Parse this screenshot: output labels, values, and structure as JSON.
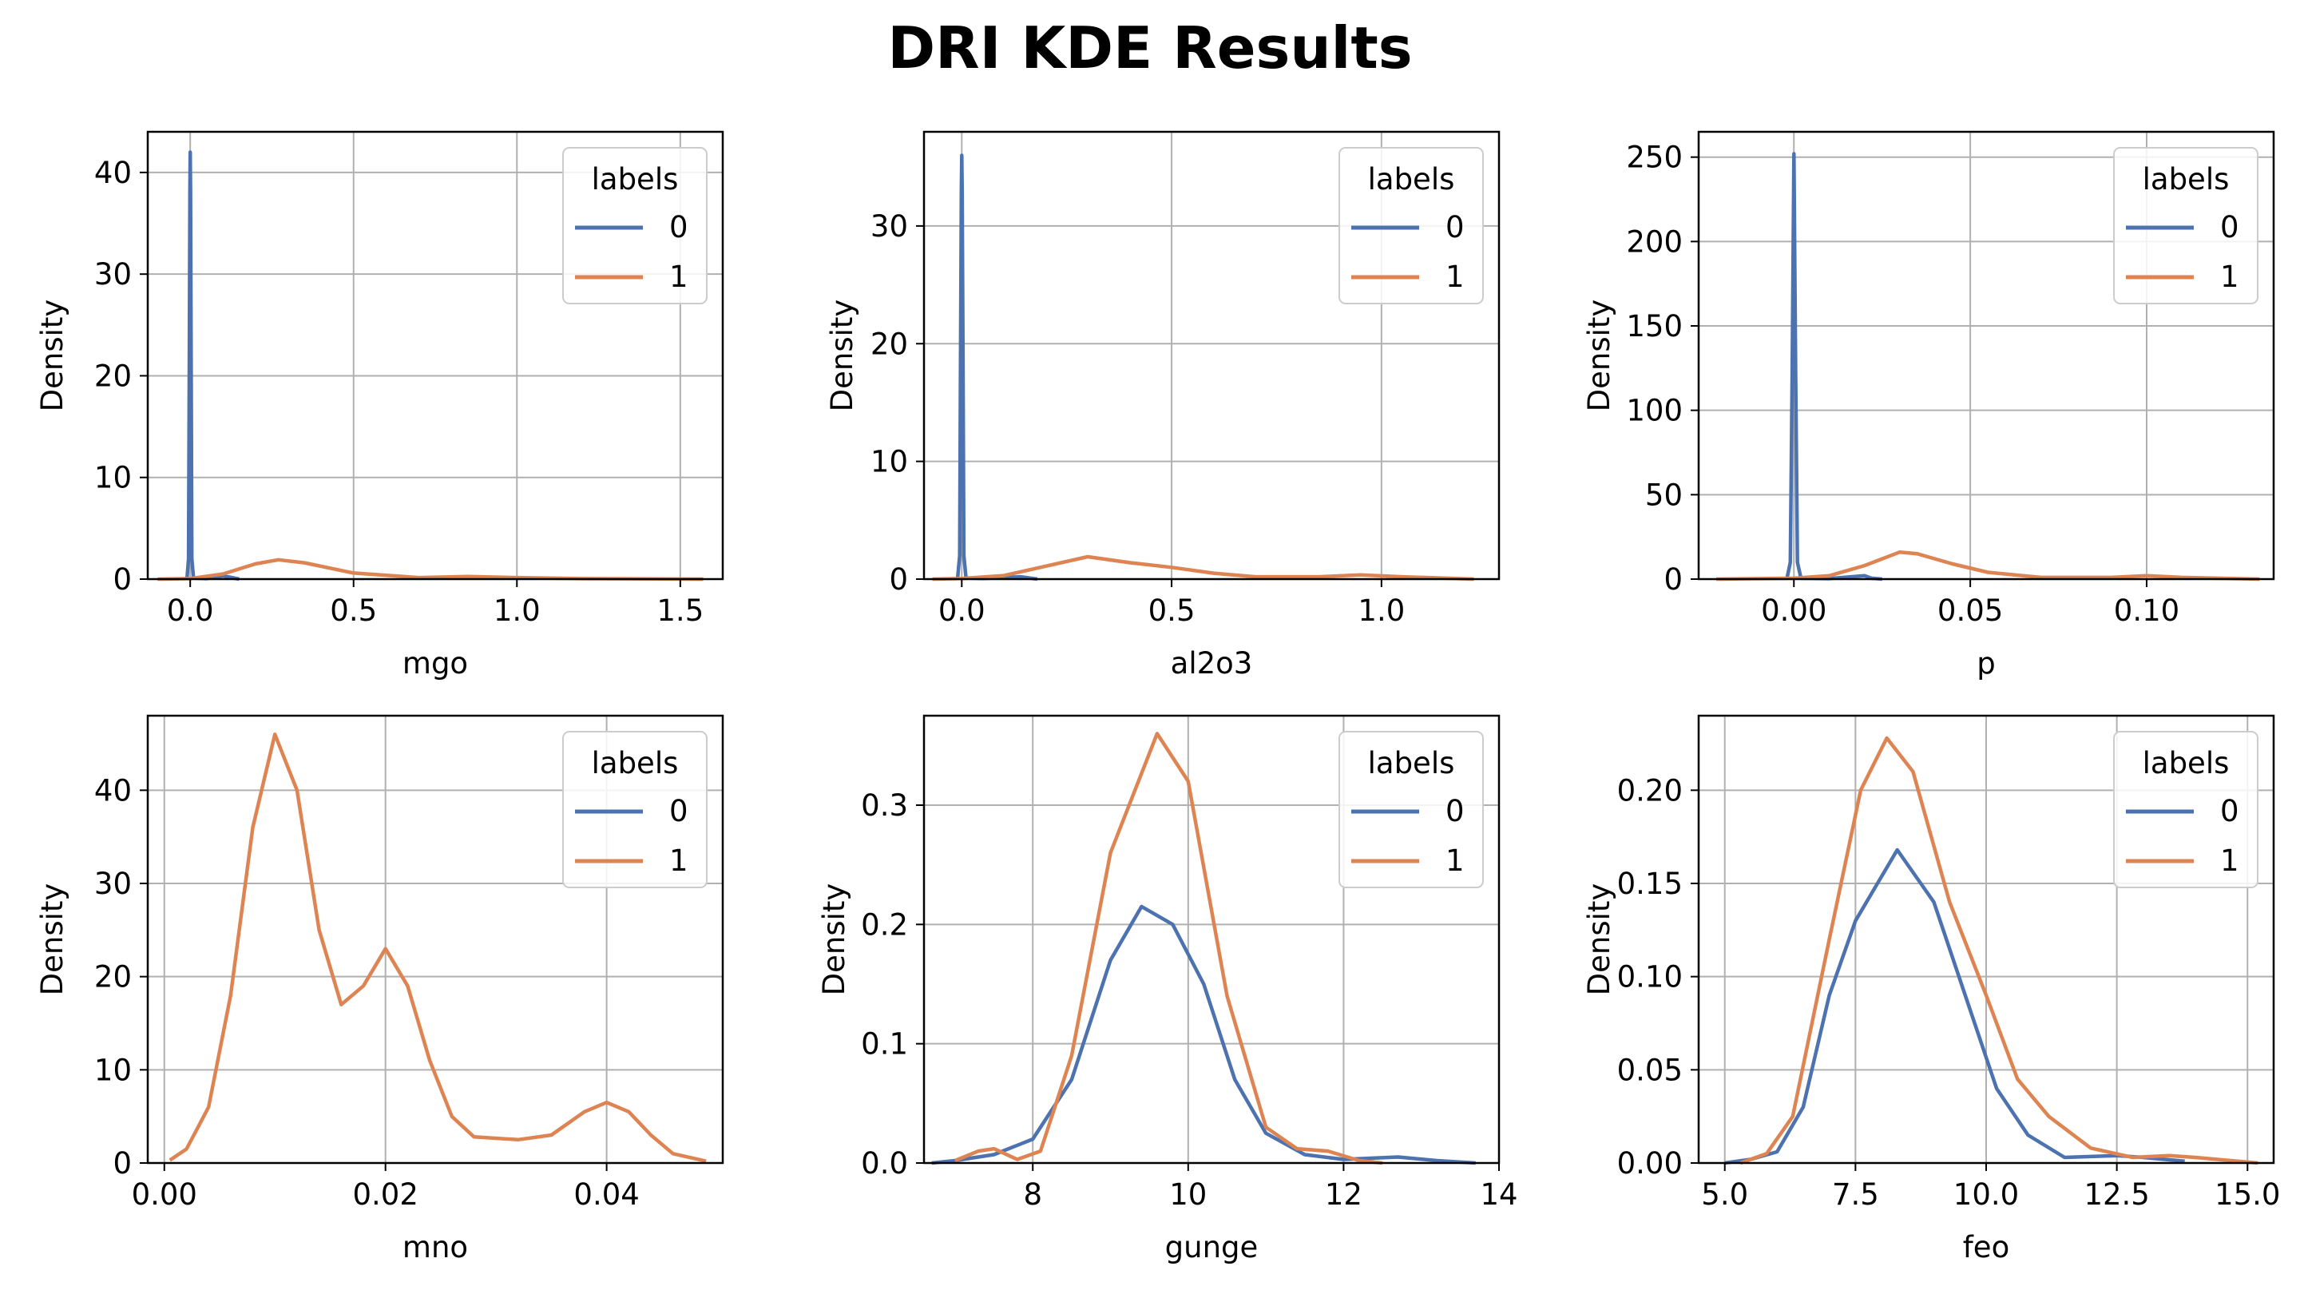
{
  "figure": {
    "title": "DRI KDE Results"
  },
  "colors": {
    "label_0": "#4c72b0",
    "label_1": "#dd8452",
    "grid": "#b0b0b0",
    "axes": "#000000"
  },
  "legend": {
    "title": "labels",
    "entries": [
      "0",
      "1"
    ],
    "placement": "upper right"
  },
  "chart_data": [
    {
      "type": "line",
      "xlabel": "mgo",
      "ylabel": "Density",
      "xlim": [
        -0.13,
        1.63
      ],
      "ylim": [
        0,
        44
      ],
      "xticks": [
        0.0,
        0.5,
        1.0,
        1.5
      ],
      "xtick_labels": [
        "0.0",
        "0.5",
        "1.0",
        "1.5"
      ],
      "yticks": [
        0,
        10,
        20,
        30,
        40
      ],
      "ytick_labels": [
        "0",
        "10",
        "20",
        "30",
        "40"
      ],
      "grid": true,
      "series": [
        {
          "name": "0",
          "points": [
            [
              -0.01,
              0
            ],
            [
              -0.005,
              2
            ],
            [
              -0.003,
              20
            ],
            [
              -0.001,
              38
            ],
            [
              0,
              42
            ],
            [
              0.001,
              38
            ],
            [
              0.003,
              20
            ],
            [
              0.005,
              2
            ],
            [
              0.01,
              0.1
            ],
            [
              0.05,
              0.05
            ],
            [
              0.1,
              0.3
            ],
            [
              0.12,
              0.2
            ],
            [
              0.15,
              0
            ]
          ]
        },
        {
          "name": "1",
          "points": [
            [
              -0.1,
              0
            ],
            [
              0,
              0.05
            ],
            [
              0.1,
              0.5
            ],
            [
              0.2,
              1.5
            ],
            [
              0.27,
              1.9
            ],
            [
              0.35,
              1.6
            ],
            [
              0.5,
              0.6
            ],
            [
              0.7,
              0.15
            ],
            [
              0.85,
              0.25
            ],
            [
              1.0,
              0.15
            ],
            [
              1.2,
              0.05
            ],
            [
              1.57,
              0
            ]
          ]
        }
      ]
    },
    {
      "type": "line",
      "xlabel": "al2o3",
      "ylabel": "Density",
      "xlim": [
        -0.09,
        1.28
      ],
      "ylim": [
        0,
        38
      ],
      "xticks": [
        0.0,
        0.5,
        1.0
      ],
      "xtick_labels": [
        "0.0",
        "0.5",
        "1.0"
      ],
      "yticks": [
        0,
        10,
        20,
        30
      ],
      "ytick_labels": [
        "0",
        "10",
        "20",
        "30"
      ],
      "grid": true,
      "series": [
        {
          "name": "0",
          "points": [
            [
              -0.01,
              0
            ],
            [
              -0.005,
              2
            ],
            [
              -0.003,
              18
            ],
            [
              -0.001,
              33
            ],
            [
              0,
              36
            ],
            [
              0.001,
              33
            ],
            [
              0.003,
              18
            ],
            [
              0.005,
              2
            ],
            [
              0.01,
              0.1
            ],
            [
              0.05,
              0.05
            ],
            [
              0.14,
              0.2
            ],
            [
              0.18,
              0
            ]
          ]
        },
        {
          "name": "1",
          "points": [
            [
              -0.07,
              0
            ],
            [
              0,
              0.05
            ],
            [
              0.1,
              0.3
            ],
            [
              0.2,
              1.1
            ],
            [
              0.3,
              1.9
            ],
            [
              0.4,
              1.4
            ],
            [
              0.5,
              1.0
            ],
            [
              0.6,
              0.5
            ],
            [
              0.7,
              0.2
            ],
            [
              0.85,
              0.2
            ],
            [
              0.95,
              0.35
            ],
            [
              1.05,
              0.2
            ],
            [
              1.22,
              0
            ]
          ]
        }
      ]
    },
    {
      "type": "line",
      "xlabel": "p",
      "ylabel": "Density",
      "xlim": [
        -0.027,
        0.136
      ],
      "ylim": [
        0,
        265
      ],
      "xticks": [
        0.0,
        0.05,
        0.1
      ],
      "xtick_labels": [
        "0.00",
        "0.05",
        "0.10"
      ],
      "yticks": [
        0,
        50,
        100,
        150,
        200,
        250
      ],
      "ytick_labels": [
        "0",
        "50",
        "100",
        "150",
        "200",
        "250"
      ],
      "grid": true,
      "series": [
        {
          "name": "0",
          "points": [
            [
              -0.002,
              0
            ],
            [
              -0.001,
              10
            ],
            [
              -0.0005,
              120
            ],
            [
              0,
              252
            ],
            [
              0.0005,
              120
            ],
            [
              0.001,
              10
            ],
            [
              0.002,
              0.5
            ],
            [
              0.01,
              0.3
            ],
            [
              0.02,
              2
            ],
            [
              0.022,
              0.5
            ],
            [
              0.025,
              0
            ]
          ]
        },
        {
          "name": "1",
          "points": [
            [
              -0.022,
              0
            ],
            [
              0,
              0.5
            ],
            [
              0.01,
              2
            ],
            [
              0.02,
              8
            ],
            [
              0.03,
              16
            ],
            [
              0.035,
              15
            ],
            [
              0.045,
              9
            ],
            [
              0.055,
              4
            ],
            [
              0.07,
              1
            ],
            [
              0.09,
              1
            ],
            [
              0.1,
              2
            ],
            [
              0.11,
              1
            ],
            [
              0.132,
              0
            ]
          ]
        }
      ]
    },
    {
      "type": "line",
      "xlabel": "mno",
      "ylabel": "Density",
      "xlim": [
        -0.0015,
        0.0505
      ],
      "ylim": [
        0,
        48
      ],
      "xticks": [
        0.0,
        0.02,
        0.04
      ],
      "xtick_labels": [
        "0.00",
        "0.02",
        "0.04"
      ],
      "yticks": [
        0,
        10,
        20,
        30,
        40
      ],
      "ytick_labels": [
        "0",
        "10",
        "20",
        "30",
        "40"
      ],
      "grid": true,
      "series": [
        {
          "name": "1",
          "points": [
            [
              0.0005,
              0.3
            ],
            [
              0.002,
              1.5
            ],
            [
              0.004,
              6
            ],
            [
              0.006,
              18
            ],
            [
              0.008,
              36
            ],
            [
              0.01,
              46
            ],
            [
              0.012,
              40
            ],
            [
              0.014,
              25
            ],
            [
              0.016,
              17
            ],
            [
              0.018,
              19
            ],
            [
              0.02,
              23
            ],
            [
              0.022,
              19
            ],
            [
              0.024,
              11
            ],
            [
              0.026,
              5
            ],
            [
              0.028,
              2.8
            ],
            [
              0.032,
              2.5
            ],
            [
              0.035,
              3
            ],
            [
              0.038,
              5.5
            ],
            [
              0.04,
              6.5
            ],
            [
              0.042,
              5.5
            ],
            [
              0.044,
              3
            ],
            [
              0.046,
              1
            ],
            [
              0.049,
              0.2
            ]
          ]
        }
      ]
    },
    {
      "type": "line",
      "xlabel": "gunge",
      "ylabel": "Density",
      "xlim": [
        6.6,
        14.0
      ],
      "ylim": [
        0,
        0.375
      ],
      "xticks": [
        8,
        10,
        12,
        14
      ],
      "xtick_labels": [
        "8",
        "10",
        "12",
        "14"
      ],
      "yticks": [
        0,
        0.1,
        0.2,
        0.3
      ],
      "ytick_labels": [
        "0.0",
        "0.1",
        "0.2",
        "0.3"
      ],
      "grid": true,
      "series": [
        {
          "name": "0",
          "points": [
            [
              6.7,
              0
            ],
            [
              7,
              0.002
            ],
            [
              7.5,
              0.007
            ],
            [
              8,
              0.02
            ],
            [
              8.5,
              0.07
            ],
            [
              9,
              0.17
            ],
            [
              9.4,
              0.215
            ],
            [
              9.8,
              0.2
            ],
            [
              10.2,
              0.15
            ],
            [
              10.6,
              0.07
            ],
            [
              11,
              0.025
            ],
            [
              11.5,
              0.007
            ],
            [
              12,
              0.003
            ],
            [
              12.7,
              0.005
            ],
            [
              13.2,
              0.002
            ],
            [
              13.7,
              0
            ]
          ]
        },
        {
          "name": "1",
          "points": [
            [
              7,
              0.002
            ],
            [
              7.3,
              0.01
            ],
            [
              7.5,
              0.012
            ],
            [
              7.8,
              0.003
            ],
            [
              8.1,
              0.01
            ],
            [
              8.5,
              0.09
            ],
            [
              9,
              0.26
            ],
            [
              9.6,
              0.36
            ],
            [
              10,
              0.32
            ],
            [
              10.5,
              0.14
            ],
            [
              11,
              0.03
            ],
            [
              11.4,
              0.012
            ],
            [
              11.8,
              0.01
            ],
            [
              12.2,
              0.002
            ],
            [
              12.5,
              0
            ]
          ]
        }
      ]
    },
    {
      "type": "line",
      "xlabel": "feo",
      "ylabel": "Density",
      "xlim": [
        4.5,
        15.5
      ],
      "ylim": [
        0,
        0.24
      ],
      "xticks": [
        5.0,
        7.5,
        10.0,
        12.5,
        15.0
      ],
      "xtick_labels": [
        "5.0",
        "7.5",
        "10.0",
        "12.5",
        "15.0"
      ],
      "yticks": [
        0,
        0.05,
        0.1,
        0.15,
        0.2
      ],
      "ytick_labels": [
        "0.00",
        "0.05",
        "0.10",
        "0.15",
        "0.20"
      ],
      "grid": true,
      "series": [
        {
          "name": "0",
          "points": [
            [
              5,
              0
            ],
            [
              5.5,
              0.002
            ],
            [
              6,
              0.006
            ],
            [
              6.5,
              0.03
            ],
            [
              7,
              0.09
            ],
            [
              7.5,
              0.13
            ],
            [
              8.3,
              0.168
            ],
            [
              9,
              0.14
            ],
            [
              9.6,
              0.09
            ],
            [
              10.2,
              0.04
            ],
            [
              10.8,
              0.015
            ],
            [
              11.5,
              0.003
            ],
            [
              12.5,
              0.004
            ],
            [
              13,
              0.003
            ],
            [
              13.8,
              0.001
            ]
          ]
        },
        {
          "name": "1",
          "points": [
            [
              5.3,
              0
            ],
            [
              5.8,
              0.005
            ],
            [
              6.3,
              0.025
            ],
            [
              7,
              0.12
            ],
            [
              7.6,
              0.2
            ],
            [
              8.1,
              0.228
            ],
            [
              8.6,
              0.21
            ],
            [
              9.3,
              0.14
            ],
            [
              10,
              0.09
            ],
            [
              10.6,
              0.045
            ],
            [
              11.2,
              0.025
            ],
            [
              12,
              0.008
            ],
            [
              12.8,
              0.003
            ],
            [
              13.5,
              0.004
            ],
            [
              14,
              0.003
            ],
            [
              15.2,
              0
            ]
          ]
        }
      ]
    }
  ]
}
